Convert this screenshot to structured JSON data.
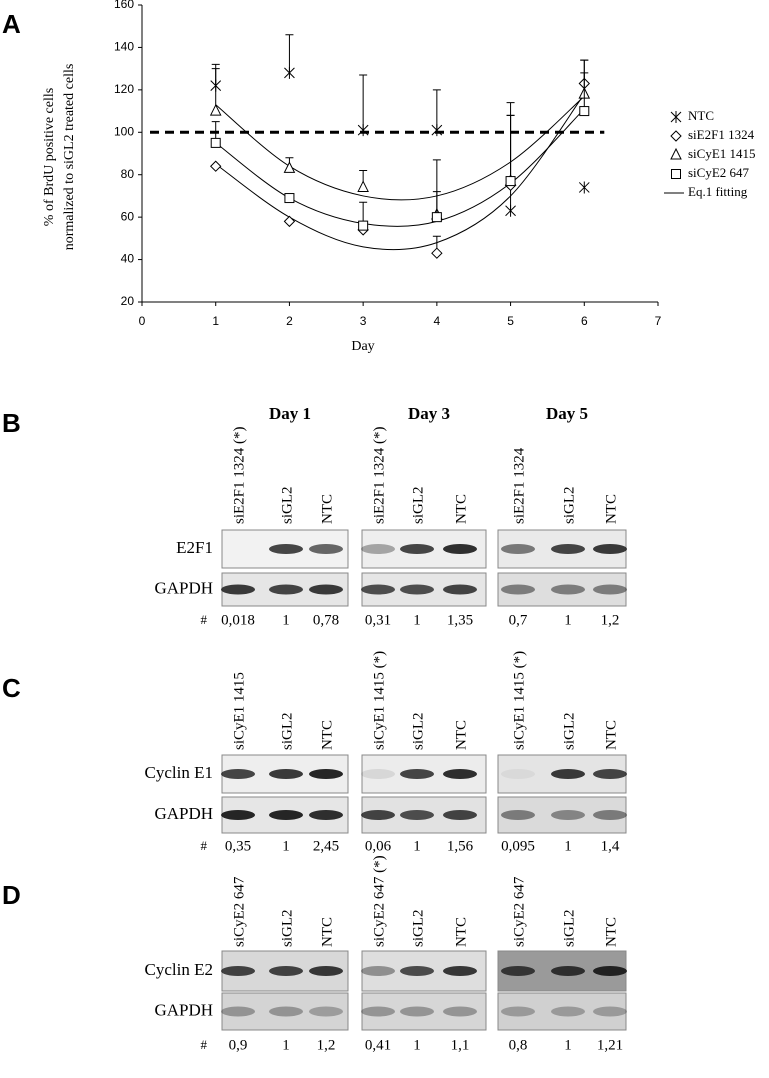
{
  "chart_data": {
    "type": "scatter",
    "panel_label": "A",
    "x_label": "Day",
    "y_label": [
      "% of BrdU positive cells",
      "normalized to siGL2 treated cells"
    ],
    "xlim": [
      0,
      7
    ],
    "xticks": [
      0,
      1,
      2,
      3,
      4,
      5,
      6,
      7
    ],
    "ylim": [
      20,
      160
    ],
    "yticks": [
      20,
      40,
      60,
      80,
      100,
      120,
      140,
      160
    ],
    "reference_line": 100,
    "fit_label": "Eq.1 fitting",
    "x": [
      1,
      2,
      3,
      4,
      5,
      6
    ],
    "series": [
      {
        "name": "NTC",
        "marker": "asterisk",
        "color": "#000000",
        "values": [
          122,
          128,
          101,
          101,
          63,
          74
        ],
        "errors": [
          10,
          18,
          26,
          19,
          45,
          null
        ]
      },
      {
        "name": "siE2F1 1324",
        "marker": "diamond",
        "color": "#000000",
        "values": [
          84,
          58,
          54,
          43,
          75,
          123
        ],
        "errors": [
          null,
          null,
          4,
          8,
          null,
          11
        ],
        "fit": [
          85,
          60,
          46,
          48,
          70,
          118
        ]
      },
      {
        "name": "siCyE1 1415",
        "marker": "triangle",
        "color": "#000000",
        "values": [
          110,
          83,
          74,
          61,
          77,
          118
        ],
        "errors": [
          20,
          5,
          8,
          11,
          31,
          16
        ],
        "fit": [
          113,
          84,
          70,
          70,
          86,
          117
        ]
      },
      {
        "name": "siCyE2 647",
        "marker": "square",
        "color": "#000000",
        "values": [
          95,
          69,
          56,
          60,
          77,
          110
        ],
        "errors": [
          10,
          null,
          11,
          27,
          37,
          18
        ],
        "fit": [
          95,
          69,
          57,
          58,
          76,
          111
        ]
      }
    ]
  },
  "panels": [
    {
      "label": "B",
      "days": [
        "Day 1",
        "Day 3",
        "Day 5"
      ],
      "rows": [
        "E2F1",
        "GAPDH"
      ],
      "hash": "#",
      "lanes": [
        [
          "siE2F1 1324 (*)",
          "siGL2",
          "NTC"
        ],
        [
          "siE2F1 1324 (*)",
          "siGL2",
          "NTC"
        ],
        [
          "siE2F1 1324",
          "siGL2",
          "NTC"
        ]
      ],
      "quant": [
        [
          "0,018",
          "1",
          "0,78"
        ],
        [
          "0,31",
          "1",
          "1,35"
        ],
        [
          "0,7",
          "1",
          "1,2"
        ]
      ]
    },
    {
      "label": "C",
      "rows": [
        "Cyclin E1",
        "GAPDH"
      ],
      "hash": "#",
      "lanes": [
        [
          "siCyE1 1415",
          "siGL2",
          "NTC"
        ],
        [
          "siCyE1 1415 (*)",
          "siGL2",
          "NTC"
        ],
        [
          "siCyE1 1415 (*)",
          "siGL2",
          "NTC"
        ]
      ],
      "quant": [
        [
          "0,35",
          "1",
          "2,45"
        ],
        [
          "0,06",
          "1",
          "1,56"
        ],
        [
          "0,095",
          "1",
          "1,4"
        ]
      ]
    },
    {
      "label": "D",
      "rows": [
        "Cyclin E2",
        "GAPDH"
      ],
      "hash": "#",
      "lanes": [
        [
          "siCyE2 647",
          "siGL2",
          "NTC"
        ],
        [
          "siCyE2 647 (*)",
          "siGL2",
          "NTC"
        ],
        [
          "siCyE2 647",
          "siGL2",
          "NTC"
        ]
      ],
      "quant": [
        [
          "0,9",
          "1",
          "1,2"
        ],
        [
          "0,41",
          "1",
          "1,1"
        ],
        [
          "0,8",
          "1",
          "1,21"
        ]
      ]
    }
  ]
}
